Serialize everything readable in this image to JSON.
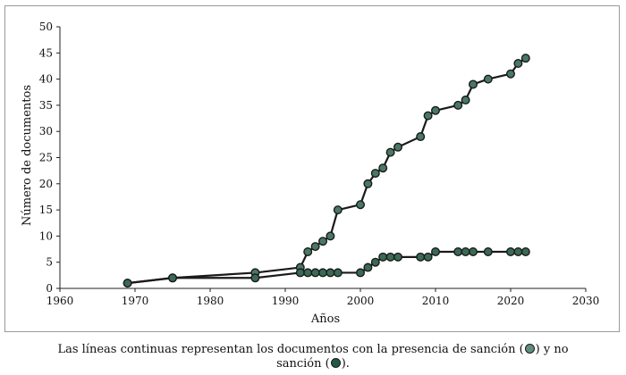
{
  "chart_data": {
    "type": "line",
    "xlabel": "Años",
    "ylabel": "Número de documentos",
    "xlim": [
      1960,
      2030
    ],
    "ylim": [
      0,
      50
    ],
    "x_ticks": [
      "1960",
      "1970",
      "1980",
      "1990",
      "2000",
      "2010",
      "2020",
      "2030"
    ],
    "y_ticks": [
      "0",
      "5",
      "10",
      "15",
      "20",
      "25",
      "30",
      "35",
      "40",
      "45",
      "50"
    ],
    "grid": false,
    "series": [
      {
        "color": "#4a7865",
        "points": [
          [
            1969,
            1
          ],
          [
            1975,
            2
          ],
          [
            1986,
            3
          ],
          [
            1992,
            4
          ],
          [
            1993,
            7
          ],
          [
            1994,
            8
          ],
          [
            1995,
            9
          ],
          [
            1996,
            10
          ],
          [
            1997,
            15
          ],
          [
            2000,
            16
          ],
          [
            2001,
            20
          ],
          [
            2002,
            22
          ],
          [
            2003,
            23
          ],
          [
            2004,
            26
          ],
          [
            2005,
            27
          ],
          [
            2008,
            29
          ],
          [
            2009,
            33
          ],
          [
            2010,
            34
          ],
          [
            2013,
            35
          ],
          [
            2014,
            36
          ],
          [
            2015,
            39
          ],
          [
            2017,
            40
          ],
          [
            2020,
            41
          ],
          [
            2021,
            43
          ],
          [
            2022,
            44
          ]
        ]
      },
      {
        "color": "#3a6a55",
        "points": [
          [
            1969,
            1
          ],
          [
            1975,
            2
          ],
          [
            1986,
            2
          ],
          [
            1992,
            3
          ],
          [
            1993,
            3
          ],
          [
            1994,
            3
          ],
          [
            1995,
            3
          ],
          [
            1996,
            3
          ],
          [
            1997,
            3
          ],
          [
            2000,
            3
          ],
          [
            2001,
            4
          ],
          [
            2002,
            5
          ],
          [
            2003,
            6
          ],
          [
            2004,
            6
          ],
          [
            2005,
            6
          ],
          [
            2008,
            6
          ],
          [
            2009,
            6
          ],
          [
            2010,
            7
          ],
          [
            2013,
            7
          ],
          [
            2014,
            7
          ],
          [
            2015,
            7
          ],
          [
            2017,
            7
          ],
          [
            2020,
            7
          ],
          [
            2021,
            7
          ],
          [
            2022,
            7
          ]
        ]
      }
    ]
  },
  "caption": {
    "part1": "Las líneas continuas representan los documentos con la presencia de sanción (",
    "part2": ") y no",
    "part3": "sanción (",
    "part4": ")."
  },
  "colors": {
    "marker_light": "#5f8f7c",
    "marker_dark": "#1f5a44",
    "line": "#1a1a1a"
  }
}
